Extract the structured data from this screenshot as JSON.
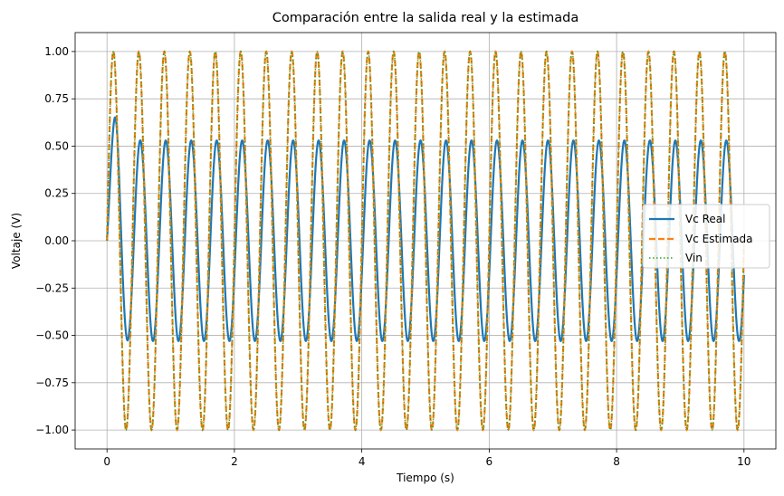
{
  "chart_data": {
    "type": "line",
    "title": "Comparación entre la salida real y la estimada",
    "xlabel": "Tiempo (s)",
    "ylabel": "Voltaje (V)",
    "xlim": [
      -0.5,
      10.5
    ],
    "ylim": [
      -1.1,
      1.1
    ],
    "x_ticks": [
      0,
      2,
      4,
      6,
      8,
      10
    ],
    "x_tick_labels": [
      "0",
      "2",
      "4",
      "6",
      "8",
      "10"
    ],
    "y_ticks": [
      1.0,
      0.75,
      0.5,
      0.25,
      0.0,
      -0.25,
      -0.5,
      -0.75,
      -1.0
    ],
    "y_tick_labels": [
      "1.00",
      "0.75",
      "0.50",
      "0.25",
      "0.00",
      "−0.25",
      "−0.50",
      "−0.75",
      "−1.00"
    ],
    "grid": true,
    "legend_position": "center-right",
    "series": [
      {
        "name": "Vc Real",
        "color": "#1f77b4",
        "style": "solid",
        "description_values": {
          "t_range": [
            0,
            10
          ],
          "frequency_hz": 2.5,
          "first_peak": {
            "t": 0.15,
            "v": 0.63
          },
          "steady_amplitude": 0.53
        }
      },
      {
        "name": "Vc Estimada",
        "color": "#ff7f0e",
        "style": "dashed",
        "description_values": {
          "t_range": [
            0,
            10
          ],
          "frequency_hz": 2.5,
          "amplitude": 1.0
        }
      },
      {
        "name": "Vin",
        "color": "#2ca02c",
        "style": "dotted",
        "description_values": {
          "t_range": [
            0,
            10
          ],
          "frequency_hz": 2.5,
          "amplitude": 1.0
        }
      }
    ]
  }
}
